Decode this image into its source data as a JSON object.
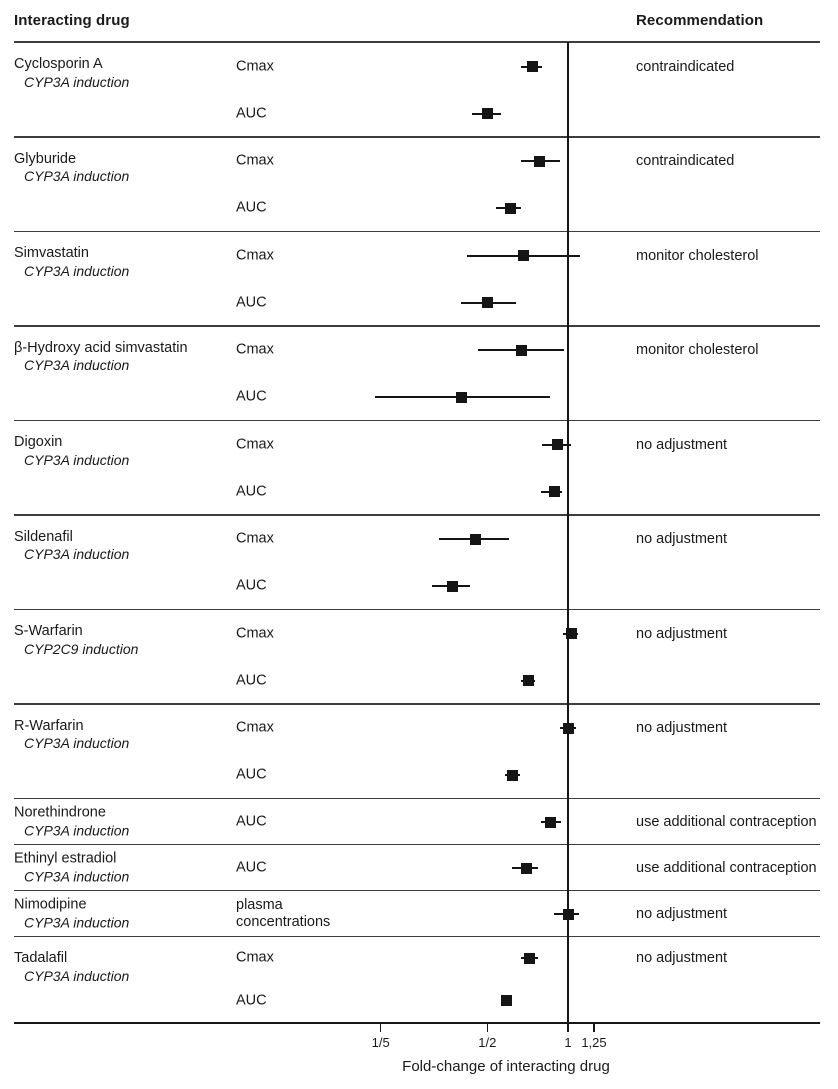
{
  "header": {
    "left": "Interacting drug",
    "right": "Recommendation"
  },
  "marker_color": "#151515",
  "chart_data": {
    "type": "forest",
    "xlabel": "Fold-change of interacting drug",
    "x_scale": "log",
    "x_range": [
      0.17,
      1.45
    ],
    "reference_line": 1,
    "grid": false,
    "x_ticks": [
      {
        "label": "1/5",
        "value": 0.2
      },
      {
        "label": "1/2",
        "value": 0.5
      },
      {
        "label": "1",
        "value": 1
      },
      {
        "label": "1,25",
        "value": 1.25
      }
    ],
    "groups": [
      {
        "drug": "Cyclosporin A",
        "mechanism": "CYP3A induction",
        "recommendation": "contraindicated",
        "measures": [
          {
            "label": "Cmax",
            "value": 0.74,
            "ci": [
              0.67,
              0.8
            ]
          },
          {
            "label": "AUC",
            "value": 0.5,
            "ci": [
              0.44,
              0.56
            ]
          }
        ]
      },
      {
        "drug": "Glyburide",
        "mechanism": "CYP3A induction",
        "recommendation": "contraindicated",
        "measures": [
          {
            "label": "Cmax",
            "value": 0.78,
            "ci": [
              0.67,
              0.93
            ]
          },
          {
            "label": "AUC",
            "value": 0.61,
            "ci": [
              0.54,
              0.67
            ]
          }
        ]
      },
      {
        "drug": "Simvastatin",
        "mechanism": "CYP3A induction",
        "recommendation": "monitor cholesterol",
        "measures": [
          {
            "label": "Cmax",
            "value": 0.68,
            "ci": [
              0.42,
              1.11
            ]
          },
          {
            "label": "AUC",
            "value": 0.5,
            "ci": [
              0.4,
              0.64
            ]
          }
        ]
      },
      {
        "drug": "β-Hydroxy acid simvastatin",
        "mechanism": "CYP3A induction",
        "recommendation": "monitor cholesterol",
        "measures": [
          {
            "label": "Cmax",
            "value": 0.67,
            "ci": [
              0.46,
              0.97
            ]
          },
          {
            "label": "AUC",
            "value": 0.4,
            "ci": [
              0.19,
              0.86
            ]
          }
        ]
      },
      {
        "drug": "Digoxin",
        "mechanism": "CYP3A induction",
        "recommendation": "no adjustment",
        "measures": [
          {
            "label": "Cmax",
            "value": 0.91,
            "ci": [
              0.8,
              1.03
            ]
          },
          {
            "label": "AUC",
            "value": 0.89,
            "ci": [
              0.79,
              0.95
            ]
          }
        ]
      },
      {
        "drug": "Sildenafil",
        "mechanism": "CYP3A induction",
        "recommendation": "no adjustment",
        "measures": [
          {
            "label": "Cmax",
            "value": 0.45,
            "ci": [
              0.33,
              0.6
            ]
          },
          {
            "label": "AUC",
            "value": 0.37,
            "ci": [
              0.31,
              0.43
            ]
          }
        ]
      },
      {
        "drug": "S-Warfarin",
        "mechanism": "CYP2C9 induction",
        "recommendation": "no adjustment",
        "measures": [
          {
            "label": "Cmax",
            "value": 1.03,
            "ci": [
              0.96,
              1.09
            ]
          },
          {
            "label": "AUC",
            "value": 0.71,
            "ci": [
              0.67,
              0.75
            ]
          }
        ]
      },
      {
        "drug": "R-Warfarin",
        "mechanism": "CYP3A induction",
        "recommendation": "no adjustment",
        "measures": [
          {
            "label": "Cmax",
            "value": 1.0,
            "ci": [
              0.93,
              1.07
            ]
          },
          {
            "label": "AUC",
            "value": 0.62,
            "ci": [
              0.58,
              0.66
            ]
          }
        ]
      },
      {
        "drug": "Norethindrone",
        "mechanism": "CYP3A induction",
        "recommendation": "use additional contraception",
        "measures": [
          {
            "label": "AUC",
            "value": 0.86,
            "ci": [
              0.79,
              0.94
            ]
          }
        ]
      },
      {
        "drug": "Ethinyl estradiol",
        "mechanism": "CYP3A induction",
        "recommendation": "use additional contraception",
        "measures": [
          {
            "label": "AUC",
            "value": 0.7,
            "ci": [
              0.62,
              0.77
            ]
          }
        ]
      },
      {
        "drug": "Nimodipine",
        "mechanism": "CYP3A induction",
        "recommendation": "no adjustment",
        "measures": [
          {
            "label": "plasma\nconcentrations",
            "value": 1.0,
            "ci": [
              0.89,
              1.1
            ]
          }
        ]
      },
      {
        "drug": "Tadalafil",
        "mechanism": "CYP3A induction",
        "recommendation": "no adjustment",
        "measures": [
          {
            "label": "Cmax",
            "value": 0.72,
            "ci": [
              0.67,
              0.77
            ]
          },
          {
            "label": "AUC",
            "value": 0.59,
            "ci": [
              0.56,
              0.62
            ]
          }
        ]
      }
    ]
  }
}
